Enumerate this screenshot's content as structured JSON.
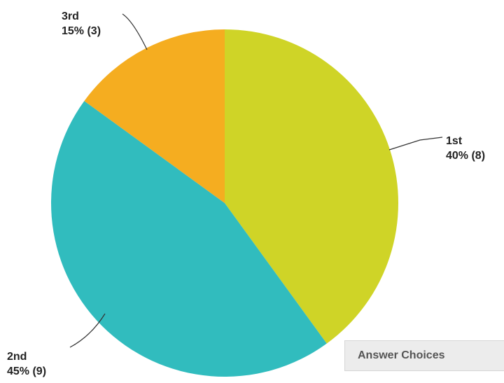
{
  "chart_data": {
    "type": "pie",
    "slices": [
      {
        "name": "1st",
        "percent": 40,
        "count": 8,
        "label_pct": "40% (8)",
        "color": "#cfd427"
      },
      {
        "name": "2nd",
        "percent": 45,
        "count": 9,
        "label_pct": "45% (9)",
        "color": "#31bcbe"
      },
      {
        "name": "3rd",
        "percent": 15,
        "count": 3,
        "label_pct": "15% (3)",
        "color": "#f5ad20"
      }
    ]
  },
  "table_header": {
    "answer_choices": "Answer Choices"
  }
}
